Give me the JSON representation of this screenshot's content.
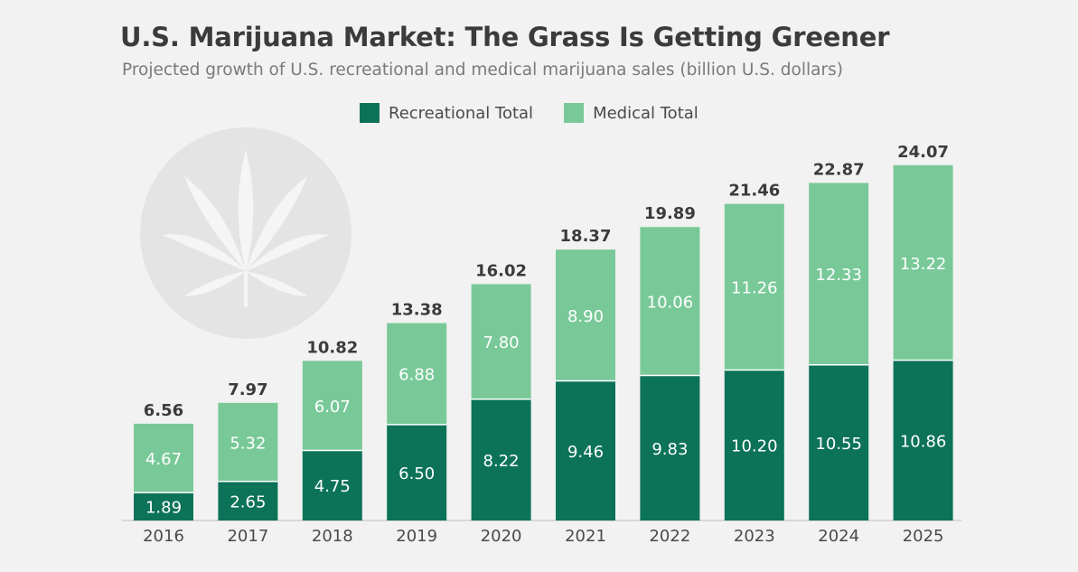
{
  "title": "U.S. Marijuana Market: The Grass Is Getting Greener",
  "subtitle": "Projected growth of U.S. recreational and medical marijuana sales (billion U.S. dollars)",
  "colors": {
    "recreational": "#0c7358",
    "medical": "#79c998",
    "total_text": "#3b3b3b",
    "axis": "#cfcfcf",
    "watermark": "#e4e4e4"
  },
  "icons": {
    "watermark": "cannabis-leaf-icon"
  },
  "chart_data": {
    "type": "bar",
    "stacked": true,
    "title": "U.S. Marijuana Market: The Grass Is Getting Greener",
    "subtitle": "Projected growth of U.S. recreational and medical marijuana sales (billion U.S. dollars)",
    "categories": [
      "2016",
      "2017",
      "2018",
      "2019",
      "2020",
      "2021",
      "2022",
      "2023",
      "2024",
      "2025"
    ],
    "series": [
      {
        "name": "Recreational Total",
        "values": [
          1.89,
          2.65,
          4.75,
          6.5,
          8.22,
          9.46,
          9.83,
          10.2,
          10.55,
          10.86
        ],
        "labels": [
          "1.89",
          "2.65",
          "4.75",
          "6.50",
          "8.22",
          "9.46",
          "9.83",
          "10.20",
          "10.55",
          "10.86"
        ]
      },
      {
        "name": "Medical Total",
        "values": [
          4.67,
          5.32,
          6.07,
          6.88,
          7.8,
          8.9,
          10.06,
          11.26,
          12.33,
          13.22
        ],
        "labels": [
          "4.67",
          "5.32",
          "6.07",
          "6.88",
          "7.80",
          "8.90",
          "10.06",
          "11.26",
          "12.33",
          "13.22"
        ]
      }
    ],
    "totals": [
      "6.56",
      "7.97",
      "10.82",
      "13.38",
      "16.02",
      "18.37",
      "19.89",
      "21.46",
      "22.87",
      "24.07"
    ],
    "xlabel": "",
    "ylabel": "",
    "ylim": [
      0,
      24.07
    ],
    "grid": false,
    "legend": "top-center"
  }
}
